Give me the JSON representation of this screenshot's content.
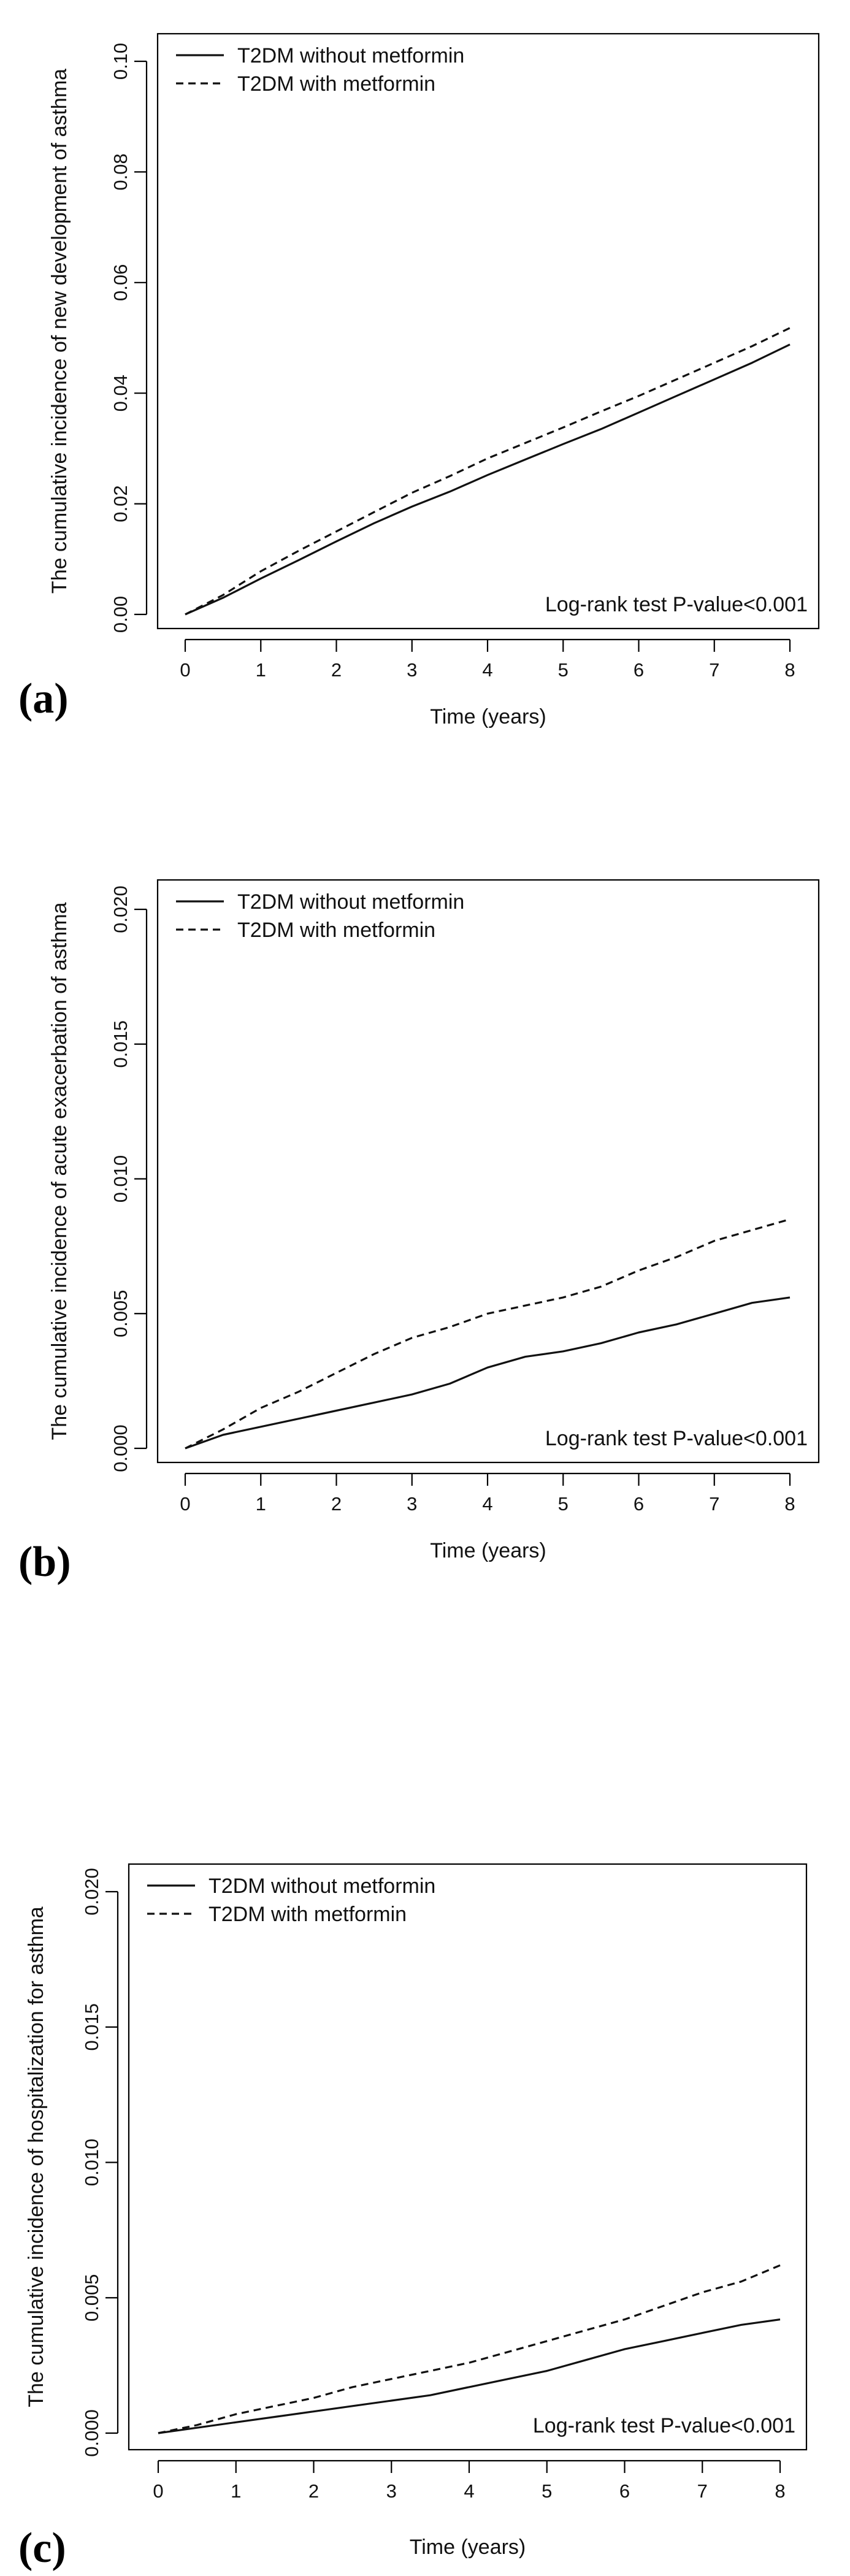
{
  "chart_data": [
    {
      "type": "line",
      "panel_label": "(a)",
      "title": "",
      "xlabel": "Time (years)",
      "ylabel": "The cumulative incidence of new development of asthma",
      "xlim": [
        0,
        8
      ],
      "ylim": [
        0,
        0.1
      ],
      "x_ticks": [
        "0",
        "1",
        "2",
        "3",
        "4",
        "5",
        "6",
        "7",
        "8"
      ],
      "y_ticks": [
        "0.00",
        "0.02",
        "0.04",
        "0.06",
        "0.08",
        "0.10"
      ],
      "legend": [
        "T2DM without metformin",
        "T2DM with metformin"
      ],
      "legend_position": "top-left",
      "annotation": "Log-rank test P-value<0.001",
      "series": [
        {
          "name": "T2DM without metformin",
          "style": "solid",
          "x": [
            0,
            0.5,
            1,
            1.5,
            2,
            2.5,
            3,
            3.5,
            4,
            4.5,
            5,
            5.5,
            6,
            6.5,
            7,
            7.5,
            8
          ],
          "values": [
            0,
            0.003,
            0.0065,
            0.0098,
            0.0132,
            0.0165,
            0.0195,
            0.0222,
            0.0252,
            0.028,
            0.0308,
            0.0335,
            0.0365,
            0.0395,
            0.0425,
            0.0455,
            0.0488
          ]
        },
        {
          "name": "T2DM with metformin",
          "style": "dashed",
          "x": [
            0,
            0.5,
            1,
            1.5,
            2,
            2.5,
            3,
            3.5,
            4,
            4.5,
            5,
            5.5,
            6,
            6.5,
            7,
            7.5,
            8
          ],
          "values": [
            0,
            0.0035,
            0.0078,
            0.0115,
            0.015,
            0.0185,
            0.022,
            0.025,
            0.0282,
            0.031,
            0.0338,
            0.0367,
            0.0395,
            0.0425,
            0.0455,
            0.0485,
            0.0518
          ]
        }
      ]
    },
    {
      "type": "line",
      "panel_label": "(b)",
      "title": "",
      "xlabel": "Time (years)",
      "ylabel": "The cumulative incidence of acute exacerbation of asthma",
      "xlim": [
        0,
        8
      ],
      "ylim": [
        0,
        0.02
      ],
      "x_ticks": [
        "0",
        "1",
        "2",
        "3",
        "4",
        "5",
        "6",
        "7",
        "8"
      ],
      "y_ticks": [
        "0.000",
        "0.005",
        "0.010",
        "0.015",
        "0.020"
      ],
      "legend": [
        "T2DM without metformin",
        "T2DM with metformin"
      ],
      "legend_position": "top-left",
      "annotation": "Log-rank test P-value<0.001",
      "series": [
        {
          "name": "T2DM without metformin",
          "style": "solid",
          "x": [
            0,
            0.5,
            1,
            1.5,
            2,
            2.5,
            3,
            3.5,
            4,
            4.5,
            5,
            5.5,
            6,
            6.5,
            7,
            7.5,
            8
          ],
          "values": [
            0,
            0.0005,
            0.0008,
            0.0011,
            0.0014,
            0.0017,
            0.002,
            0.0024,
            0.003,
            0.0034,
            0.0036,
            0.0039,
            0.0043,
            0.0046,
            0.005,
            0.0054,
            0.0056
          ]
        },
        {
          "name": "T2DM with metformin",
          "style": "dashed",
          "x": [
            0,
            0.5,
            1,
            1.5,
            2,
            2.5,
            3,
            3.5,
            4,
            4.5,
            5,
            5.5,
            6,
            6.5,
            7,
            7.5,
            8
          ],
          "values": [
            0,
            0.0007,
            0.0015,
            0.0021,
            0.0028,
            0.0035,
            0.0041,
            0.0045,
            0.005,
            0.0053,
            0.0056,
            0.006,
            0.0066,
            0.0071,
            0.0077,
            0.0081,
            0.0085
          ]
        }
      ]
    },
    {
      "type": "line",
      "panel_label": "(c)",
      "title": "",
      "xlabel": "Time (years)",
      "ylabel": "The cumulative incidence of hospitalization for asthma",
      "xlim": [
        0,
        8
      ],
      "ylim": [
        0,
        0.02
      ],
      "x_ticks": [
        "0",
        "1",
        "2",
        "3",
        "4",
        "5",
        "6",
        "7",
        "8"
      ],
      "y_ticks": [
        "0.000",
        "0.005",
        "0.010",
        "0.015",
        "0.020"
      ],
      "legend": [
        "T2DM without metformin",
        "T2DM with metformin"
      ],
      "legend_position": "top-left",
      "annotation": "Log-rank test P-value<0.001",
      "series": [
        {
          "name": "T2DM without metformin",
          "style": "solid",
          "x": [
            0,
            0.5,
            1,
            1.5,
            2,
            2.5,
            3,
            3.5,
            4,
            4.5,
            5,
            5.5,
            6,
            6.5,
            7,
            7.5,
            8
          ],
          "values": [
            0,
            0.0002,
            0.0004,
            0.0006,
            0.0008,
            0.001,
            0.0012,
            0.0014,
            0.0017,
            0.002,
            0.0023,
            0.0027,
            0.0031,
            0.0034,
            0.0037,
            0.004,
            0.0042
          ]
        },
        {
          "name": "T2DM with metformin",
          "style": "dashed",
          "x": [
            0,
            0.5,
            1,
            1.5,
            2,
            2.5,
            3,
            3.5,
            4,
            4.5,
            5,
            5.5,
            6,
            6.5,
            7,
            7.5,
            8
          ],
          "values": [
            0,
            0.0003,
            0.0007,
            0.001,
            0.0013,
            0.0017,
            0.002,
            0.0023,
            0.0026,
            0.003,
            0.0034,
            0.0038,
            0.0042,
            0.0047,
            0.0052,
            0.0056,
            0.0062
          ]
        }
      ]
    }
  ]
}
